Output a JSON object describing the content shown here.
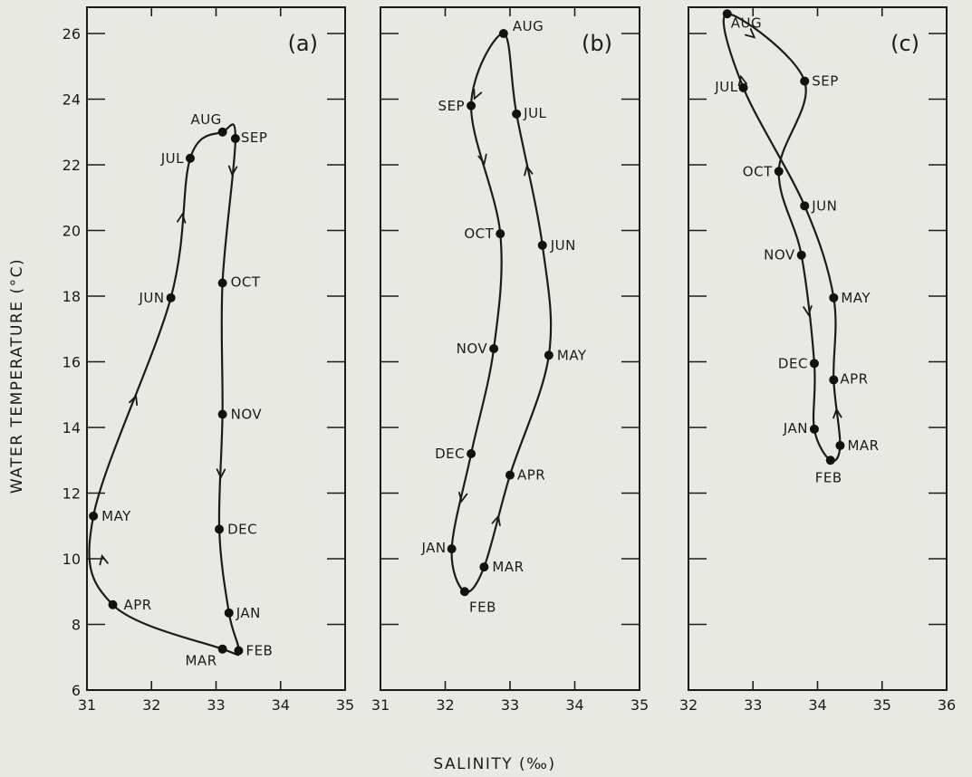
{
  "chart_data": [
    {
      "type": "line",
      "panel_label": "(a)",
      "xlabel": "SALINITY (‰)",
      "ylabel": "WATER TEMPERATURE (°C)",
      "xlim": [
        31,
        35
      ],
      "ylim": [
        6,
        26.8
      ],
      "xticks": [
        31,
        32,
        33,
        34,
        35
      ],
      "xtick_labels": [
        "31",
        "32",
        "33",
        "34",
        "35"
      ],
      "yticks": [
        6,
        8,
        10,
        12,
        14,
        16,
        18,
        20,
        22,
        24,
        26
      ],
      "ytick_labels": [
        "6",
        "8",
        "10",
        "12",
        "14",
        "16",
        "18",
        "20",
        "22",
        "24",
        "26"
      ],
      "grid": false,
      "series": [
        {
          "points": [
            {
              "label": "JAN",
              "x": 33.2,
              "y": 8.35
            },
            {
              "label": "FEB",
              "x": 33.35,
              "y": 7.2
            },
            {
              "label": "MAR",
              "x": 33.1,
              "y": 7.25
            },
            {
              "label": "APR",
              "x": 31.4,
              "y": 8.6
            },
            {
              "label": "MAY",
              "x": 31.1,
              "y": 11.3
            },
            {
              "label": "JUN",
              "x": 32.3,
              "y": 17.95
            },
            {
              "label": "JUL",
              "x": 32.6,
              "y": 22.2
            },
            {
              "label": "AUG",
              "x": 33.1,
              "y": 23.0
            },
            {
              "label": "SEP",
              "x": 33.3,
              "y": 22.8
            },
            {
              "label": "OCT",
              "x": 33.1,
              "y": 18.4
            },
            {
              "label": "NOV",
              "x": 33.1,
              "y": 14.4
            },
            {
              "label": "DEC",
              "x": 33.05,
              "y": 10.9
            }
          ]
        }
      ]
    },
    {
      "type": "line",
      "panel_label": "(b)",
      "xlim": [
        31,
        35
      ],
      "ylim": [
        6,
        26.8
      ],
      "xticks": [
        31,
        32,
        33,
        34,
        35
      ],
      "xtick_labels": [
        "31",
        "32",
        "33",
        "34",
        "35"
      ],
      "yticks": [
        6,
        8,
        10,
        12,
        14,
        16,
        18,
        20,
        22,
        24,
        26
      ],
      "grid": false,
      "series": [
        {
          "points": [
            {
              "label": "JAN",
              "x": 32.1,
              "y": 10.3
            },
            {
              "label": "FEB",
              "x": 32.3,
              "y": 9.0
            },
            {
              "label": "MAR",
              "x": 32.6,
              "y": 9.75
            },
            {
              "label": "APR",
              "x": 33.0,
              "y": 12.55
            },
            {
              "label": "MAY",
              "x": 33.6,
              "y": 16.2
            },
            {
              "label": "JUN",
              "x": 33.5,
              "y": 19.55
            },
            {
              "label": "JUL",
              "x": 33.1,
              "y": 23.55
            },
            {
              "label": "AUG",
              "x": 32.9,
              "y": 26.0
            },
            {
              "label": "SEP",
              "x": 32.4,
              "y": 23.8
            },
            {
              "label": "OCT",
              "x": 32.85,
              "y": 19.9
            },
            {
              "label": "NOV",
              "x": 32.75,
              "y": 16.4
            },
            {
              "label": "DEC",
              "x": 32.4,
              "y": 13.2
            }
          ]
        }
      ]
    },
    {
      "type": "line",
      "panel_label": "(c)",
      "xlim": [
        32,
        36
      ],
      "ylim": [
        6,
        26.8
      ],
      "xticks": [
        32,
        33,
        34,
        35,
        36
      ],
      "xtick_labels": [
        "32",
        "33",
        "34",
        "35",
        "36"
      ],
      "yticks": [
        6,
        8,
        10,
        12,
        14,
        16,
        18,
        20,
        22,
        24,
        26
      ],
      "grid": false,
      "series": [
        {
          "points": [
            {
              "label": "JAN",
              "x": 33.95,
              "y": 13.95
            },
            {
              "label": "FEB",
              "x": 34.2,
              "y": 13.0
            },
            {
              "label": "MAR",
              "x": 34.35,
              "y": 13.45
            },
            {
              "label": "APR",
              "x": 34.25,
              "y": 15.45
            },
            {
              "label": "MAY",
              "x": 34.25,
              "y": 17.95
            },
            {
              "label": "JUN",
              "x": 33.8,
              "y": 20.75
            },
            {
              "label": "JUL",
              "x": 32.85,
              "y": 24.35
            },
            {
              "label": "AUG",
              "x": 32.6,
              "y": 26.6
            },
            {
              "label": "SEP",
              "x": 33.8,
              "y": 24.55
            },
            {
              "label": "OCT",
              "x": 33.4,
              "y": 21.8
            },
            {
              "label": "NOV",
              "x": 33.75,
              "y": 19.25
            },
            {
              "label": "DEC",
              "x": 33.95,
              "y": 15.95
            }
          ]
        }
      ]
    }
  ]
}
